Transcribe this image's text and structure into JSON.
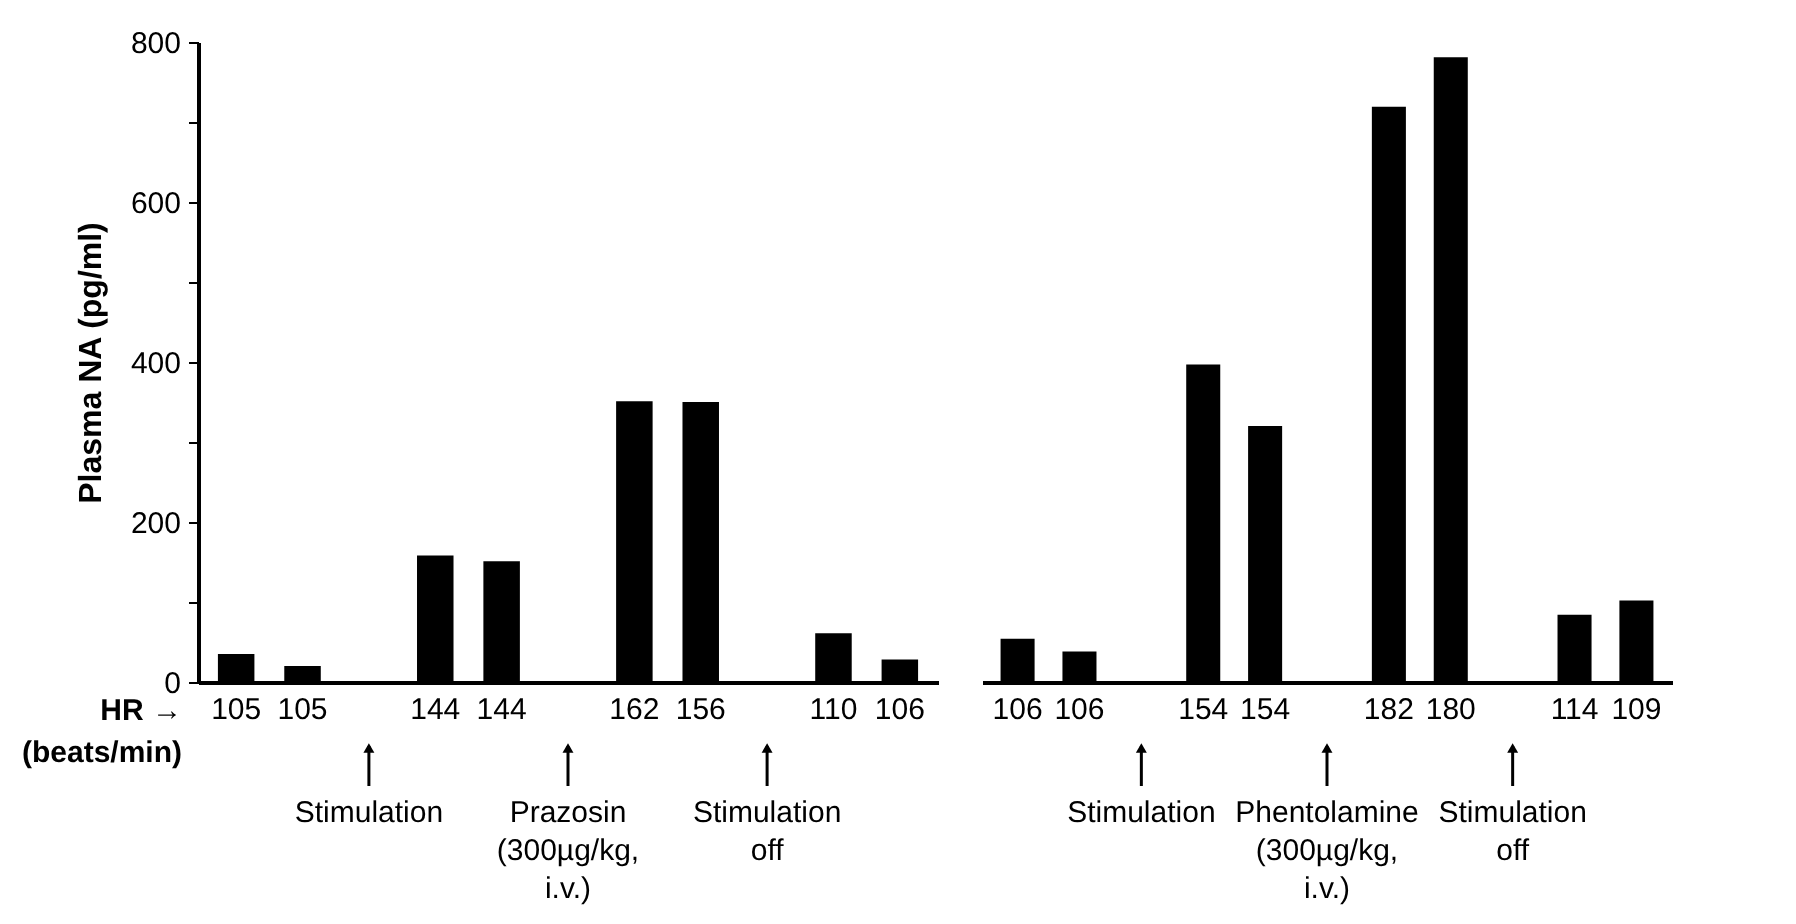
{
  "chart_data": [
    {
      "type": "bar",
      "ylabel": "Plasma NA (pg/ml)",
      "xlabel": "HR →\n(beats/min)",
      "categories": [
        "105",
        "105",
        "144",
        "144",
        "162",
        "156",
        "110",
        "106"
      ],
      "values": [
        35,
        20,
        158,
        151,
        351,
        350,
        61,
        28
      ],
      "color": "#000000",
      "ylim": [
        0,
        800
      ],
      "yticks": [
        0,
        {
          "value": 100,
          "label": null
        },
        200,
        {
          "value": 300,
          "label": null
        },
        400,
        {
          "value": 500,
          "label": null
        },
        600,
        {
          "value": 700,
          "label": null
        },
        800
      ],
      "annotations": [
        "Stimulation",
        "Prazosin\n(300µg/kg,\ni.v.)",
        "Stimulation\noff"
      ]
    },
    {
      "type": "bar",
      "tick_labels": "x",
      "categories": [
        "106",
        "106",
        "154",
        "154",
        "182",
        "180",
        "114",
        "109"
      ],
      "values": [
        54,
        38,
        397,
        320,
        719,
        781,
        84,
        102
      ],
      "color": "#000000",
      "ylim": [
        0,
        800
      ],
      "annotations": [
        "Stimulation",
        "Phentolamine\n(300µg/kg,\ni.v.)",
        "Stimulation\noff"
      ]
    }
  ]
}
